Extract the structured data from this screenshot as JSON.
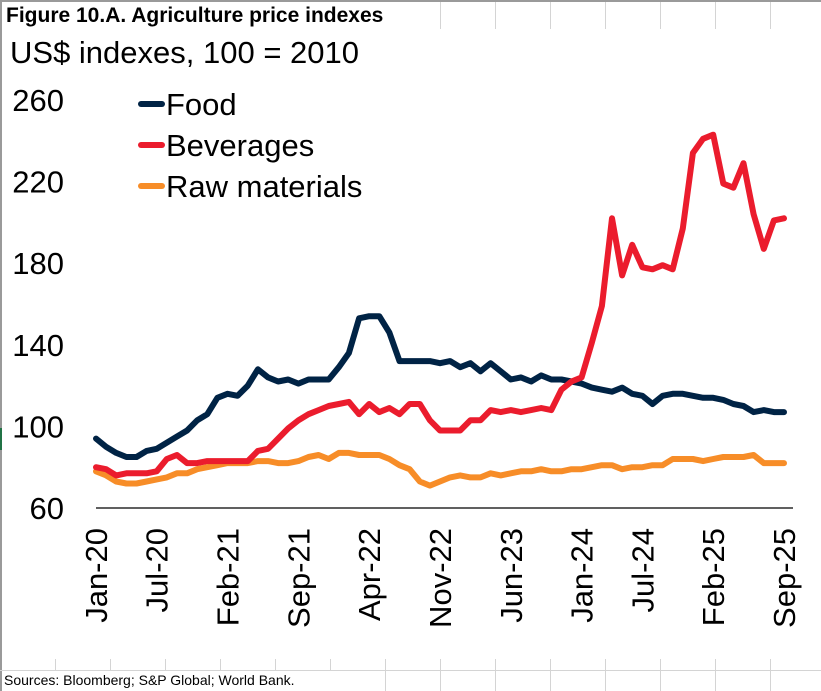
{
  "figure": {
    "title": "Figure 10.A. Agriculture price indexes",
    "subtitle": "US$ indexes, 100 = 2010",
    "sources": "Sources: Bloomberg;  S&P Global; World Bank."
  },
  "chart_data": {
    "type": "line",
    "title": "Figure 10.A. Agriculture price indexes",
    "subtitle": "US$ indexes, 100 = 2010",
    "xlabel": "",
    "ylabel": "US$ indexes, 100 = 2010",
    "ylim": [
      60,
      260
    ],
    "yticks": [
      60,
      100,
      140,
      180,
      220,
      260
    ],
    "ytick_labels": [
      "60",
      "100",
      "140",
      "180",
      "220",
      "260"
    ],
    "grid": false,
    "legend_position": "top-left",
    "x_start": "Jan-20",
    "x_end": "Sep-25",
    "x_frequency": "monthly",
    "xtick_labels": [
      "Jan-20",
      "Jul-20",
      "Feb-21",
      "Sep-21",
      "Apr-22",
      "Nov-22",
      "Jun-23",
      "Jan-24",
      "Jul-24",
      "Feb-25",
      "Sep-25"
    ],
    "xtick_index": [
      0,
      6,
      13,
      20,
      27,
      34,
      41,
      48,
      54,
      61,
      68
    ],
    "series": [
      {
        "name": "Food",
        "color": "#002345",
        "values": [
          94,
          90,
          87,
          85,
          85,
          88,
          89,
          92,
          95,
          98,
          103,
          106,
          114,
          116,
          115,
          120,
          128,
          124,
          122,
          123,
          121,
          123,
          123,
          123,
          129,
          136,
          153,
          154,
          154,
          146,
          132,
          132,
          132,
          132,
          131,
          132,
          129,
          131,
          127,
          131,
          127,
          123,
          124,
          122,
          125,
          123,
          123,
          122,
          121,
          119,
          118,
          117,
          119,
          116,
          115,
          111,
          115,
          116,
          116,
          115,
          114,
          114,
          113,
          111,
          110,
          107,
          108,
          107,
          107
        ]
      },
      {
        "name": "Beverages",
        "color": "#EB1C2D",
        "values": [
          80,
          79,
          76,
          77,
          77,
          77,
          78,
          84,
          86,
          82,
          82,
          83,
          83,
          83,
          83,
          83,
          88,
          89,
          94,
          99,
          103,
          106,
          108,
          110,
          111,
          112,
          106,
          111,
          107,
          109,
          106,
          111,
          111,
          103,
          98,
          98,
          98,
          103,
          103,
          108,
          107,
          108,
          107,
          108,
          109,
          108,
          118,
          122,
          124,
          141,
          159,
          202,
          174,
          189,
          178,
          177,
          179,
          177,
          197,
          234,
          241,
          243,
          219,
          217,
          229,
          204,
          187,
          201,
          202
        ]
      },
      {
        "name": "Raw materials",
        "color": "#F78D28",
        "values": [
          78,
          76,
          73,
          72,
          72,
          73,
          74,
          75,
          77,
          77,
          79,
          80,
          81,
          82,
          82,
          82,
          83,
          83,
          82,
          82,
          83,
          85,
          86,
          84,
          87,
          87,
          86,
          86,
          86,
          84,
          81,
          79,
          73,
          71,
          73,
          75,
          76,
          75,
          75,
          77,
          76,
          77,
          78,
          78,
          79,
          78,
          78,
          79,
          79,
          80,
          81,
          81,
          79,
          80,
          80,
          81,
          81,
          84,
          84,
          84,
          83,
          84,
          85,
          85,
          85,
          86,
          82,
          82,
          82
        ]
      }
    ]
  }
}
